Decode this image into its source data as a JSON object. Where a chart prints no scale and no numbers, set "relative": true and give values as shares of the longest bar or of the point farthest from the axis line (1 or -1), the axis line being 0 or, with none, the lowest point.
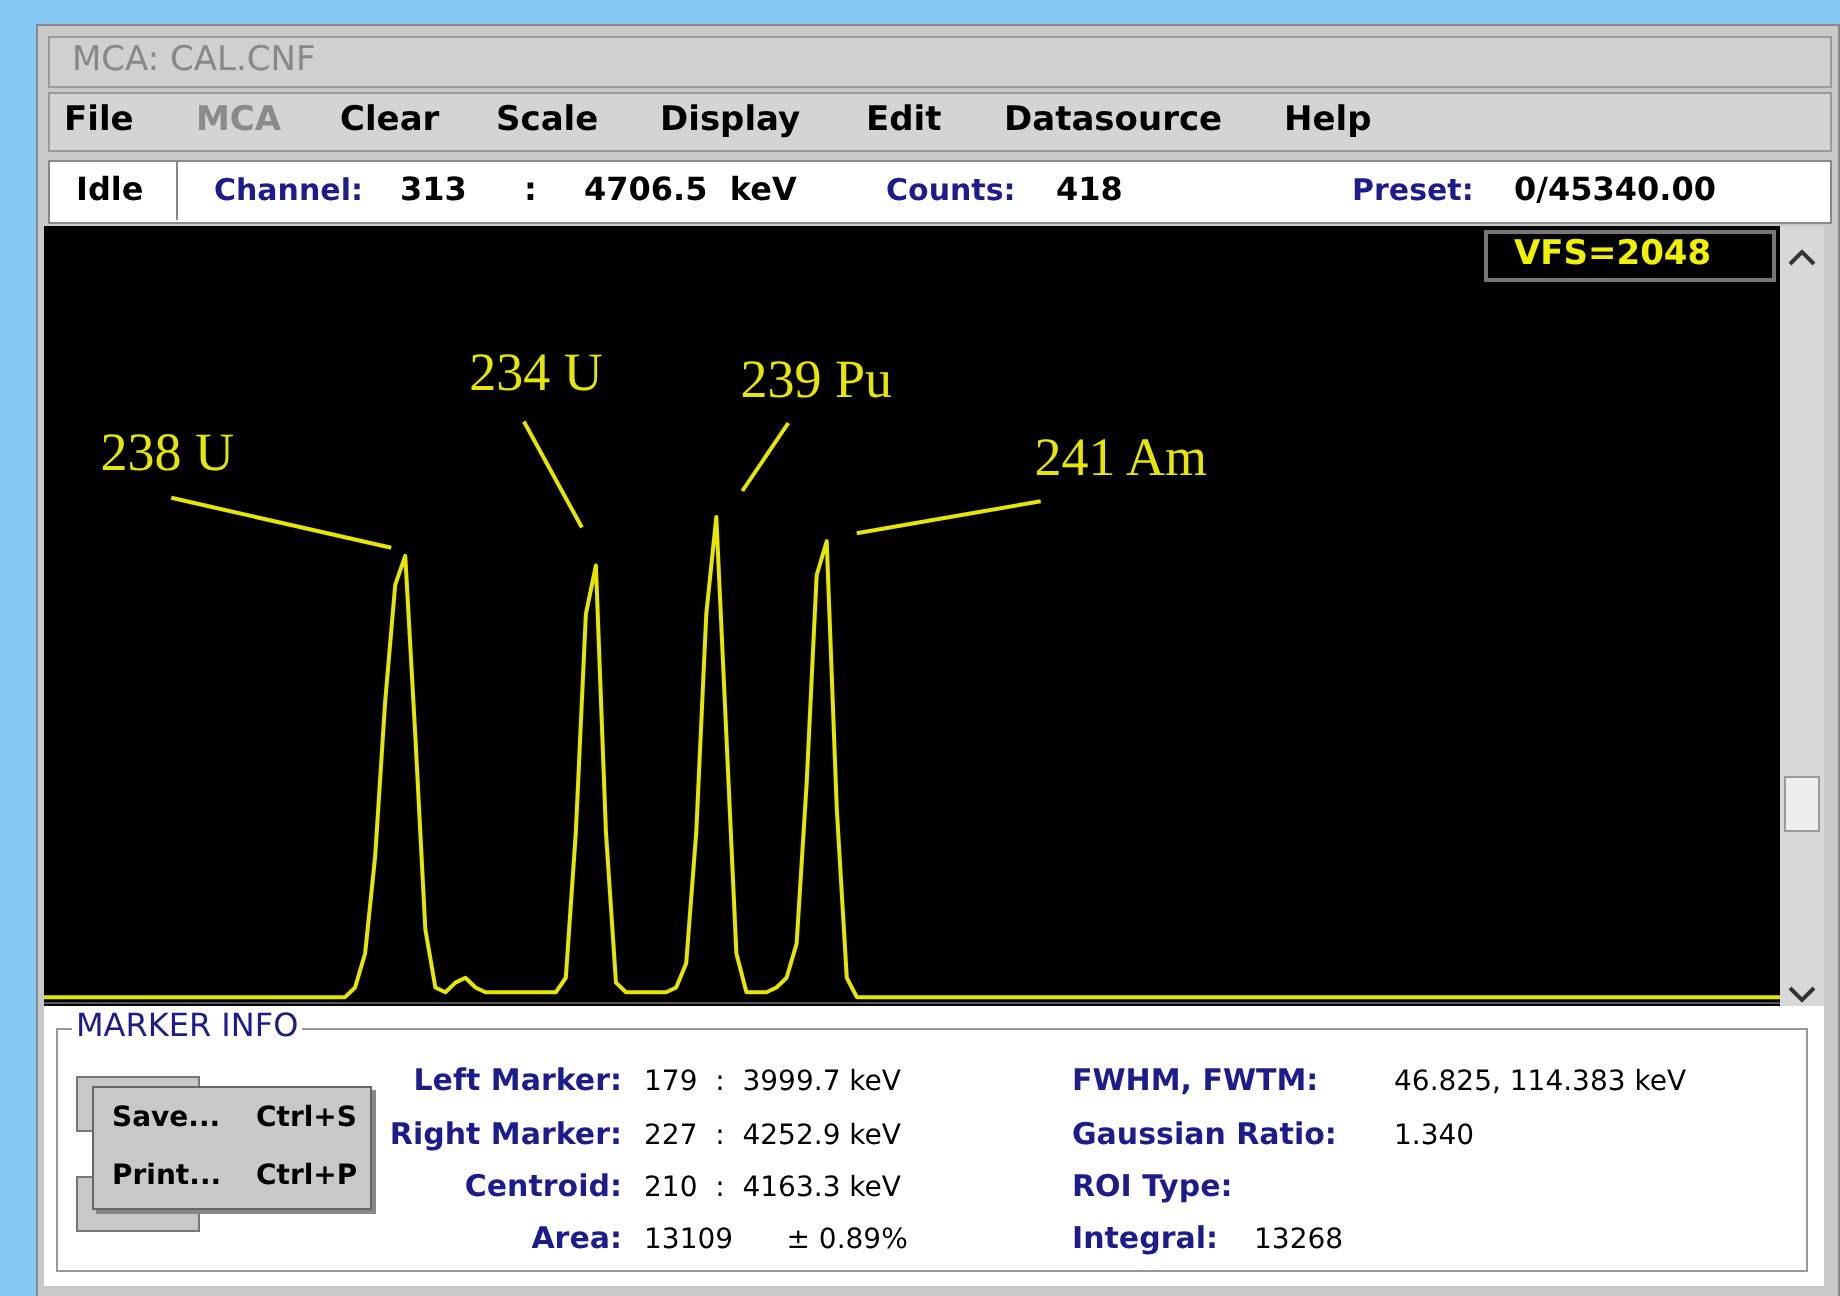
{
  "chart_data": {
    "type": "line",
    "title": "MCA: CAL.CNF",
    "relative": true,
    "categories": [
      null,
      null,
      null,
      null,
      null,
      null,
      null,
      null,
      null,
      null,
      null,
      null,
      null,
      null,
      null,
      null,
      null,
      null,
      null,
      null,
      null,
      null,
      null,
      null,
      null,
      null,
      null,
      null,
      null,
      null,
      null,
      null,
      null,
      null,
      null,
      null,
      null,
      null,
      null,
      null,
      null,
      null,
      null,
      null,
      null,
      null,
      null,
      null,
      null,
      null,
      null,
      null,
      null,
      null,
      null,
      null,
      null,
      null,
      null,
      null,
      null,
      null,
      null,
      null,
      null,
      null,
      null,
      null,
      null,
      null,
      null,
      null,
      null,
      null,
      null,
      null,
      null,
      null,
      null,
      null,
      null,
      null,
      null,
      null,
      null,
      null,
      null,
      null,
      null,
      null,
      null,
      null,
      null,
      null,
      null,
      null,
      null,
      null,
      null,
      null,
      null,
      null,
      null,
      null,
      null,
      null,
      null,
      null,
      null,
      null,
      null,
      null,
      null,
      null,
      null,
      null,
      null,
      null,
      null,
      null,
      null,
      null,
      null,
      null,
      null,
      null,
      null,
      null,
      null,
      null,
      null,
      null,
      null,
      null,
      null,
      null,
      null,
      null,
      null,
      null,
      null,
      null,
      null,
      null,
      null,
      null,
      null,
      null,
      null,
      null,
      null,
      null,
      null,
      null,
      null,
      null,
      null,
      null,
      null,
      null,
      null,
      null,
      null,
      null,
      null,
      null,
      null,
      null,
      null,
      null,
      null,
      null,
      null,
      null
    ],
    "series": [
      {
        "color": "#e6e600",
        "values": [
          0.01,
          0.01,
          0.01,
          0.01,
          0.01,
          0.01,
          0.01,
          0.01,
          0.01,
          0.01,
          0.01,
          0.01,
          0.01,
          0.01,
          0.01,
          0.01,
          0.01,
          0.01,
          0.01,
          0.01,
          0.01,
          0.01,
          0.01,
          0.01,
          0.01,
          0.01,
          0.01,
          0.01,
          0.01,
          0.01,
          0.01,
          0.03,
          0.1,
          0.3,
          0.62,
          0.86,
          0.92,
          0.55,
          0.15,
          0.03,
          0.02,
          0.04,
          0.05,
          0.03,
          0.02,
          0.02,
          0.02,
          0.02,
          0.02,
          0.02,
          0.02,
          0.02,
          0.05,
          0.35,
          0.8,
          0.9,
          0.35,
          0.04,
          0.02,
          0.02,
          0.02,
          0.02,
          0.02,
          0.03,
          0.08,
          0.35,
          0.8,
          1.0,
          0.55,
          0.1,
          0.02,
          0.02,
          0.02,
          0.03,
          0.05,
          0.12,
          0.45,
          0.88,
          0.95,
          0.4,
          0.05,
          0.01,
          0.01,
          0.01,
          0.01,
          0.01,
          0.01,
          0.01,
          0.01,
          0.01,
          0.01,
          0.01,
          0.01,
          0.01,
          0.01,
          0.01,
          0.01,
          0.01,
          0.01,
          0.01,
          0.01,
          0.01,
          0.01,
          0.01,
          0.01,
          0.01,
          0.01,
          0.01,
          0.01,
          0.01,
          0.01,
          0.01,
          0.01,
          0.01,
          0.01,
          0.01,
          0.01,
          0.01,
          0.01,
          0.01,
          0.01,
          0.01,
          0.01,
          0.01,
          0.01,
          0.01,
          0.01,
          0.01,
          0.01,
          0.01,
          0.01,
          0.01,
          0.01,
          0.01,
          0.01,
          0.01,
          0.01,
          0.01,
          0.01,
          0.01,
          0.01,
          0.01,
          0.01,
          0.01,
          0.01,
          0.01,
          0.01,
          0.01,
          0.01,
          0.01,
          0.01,
          0.01,
          0.01,
          0.01,
          0.01,
          0.01,
          0.01,
          0.01,
          0.01,
          0.01,
          0.01,
          0.01,
          0.01,
          0.01,
          0.01,
          0.01,
          0.01,
          0.01,
          0.01,
          0.01,
          0.01,
          0.01,
          0.01,
          0.01
        ]
      }
    ],
    "annotations": [
      "238 U",
      "234 U",
      "239 Pu",
      "241 Am",
      "File",
      "MCA",
      "Clear",
      "Scale",
      "Display",
      "Edit",
      "Datasource",
      "Help",
      "Idle",
      "Channel:",
      "313",
      ":",
      "4706.5  keV",
      "Counts:",
      "418",
      "Preset:",
      "0/45340.00",
      "VFS=2048",
      "MARKER INFO",
      "Left Marker:",
      "179  :  3999.7 keV",
      "Right Marker:",
      "227  :  4252.9 keV",
      "Centroid:",
      "210  :  4163.3 keV",
      "Area:",
      "13109      ± 0.89%",
      "FWHM, FWTM:",
      "46.825, 114.383 keV",
      "Gaussian Ratio:",
      "1.340",
      "ROI Type:",
      "Integral:",
      "13268",
      "Save...",
      "Ctrl+S",
      "Print...",
      "Ctrl+P"
    ]
  }
}
